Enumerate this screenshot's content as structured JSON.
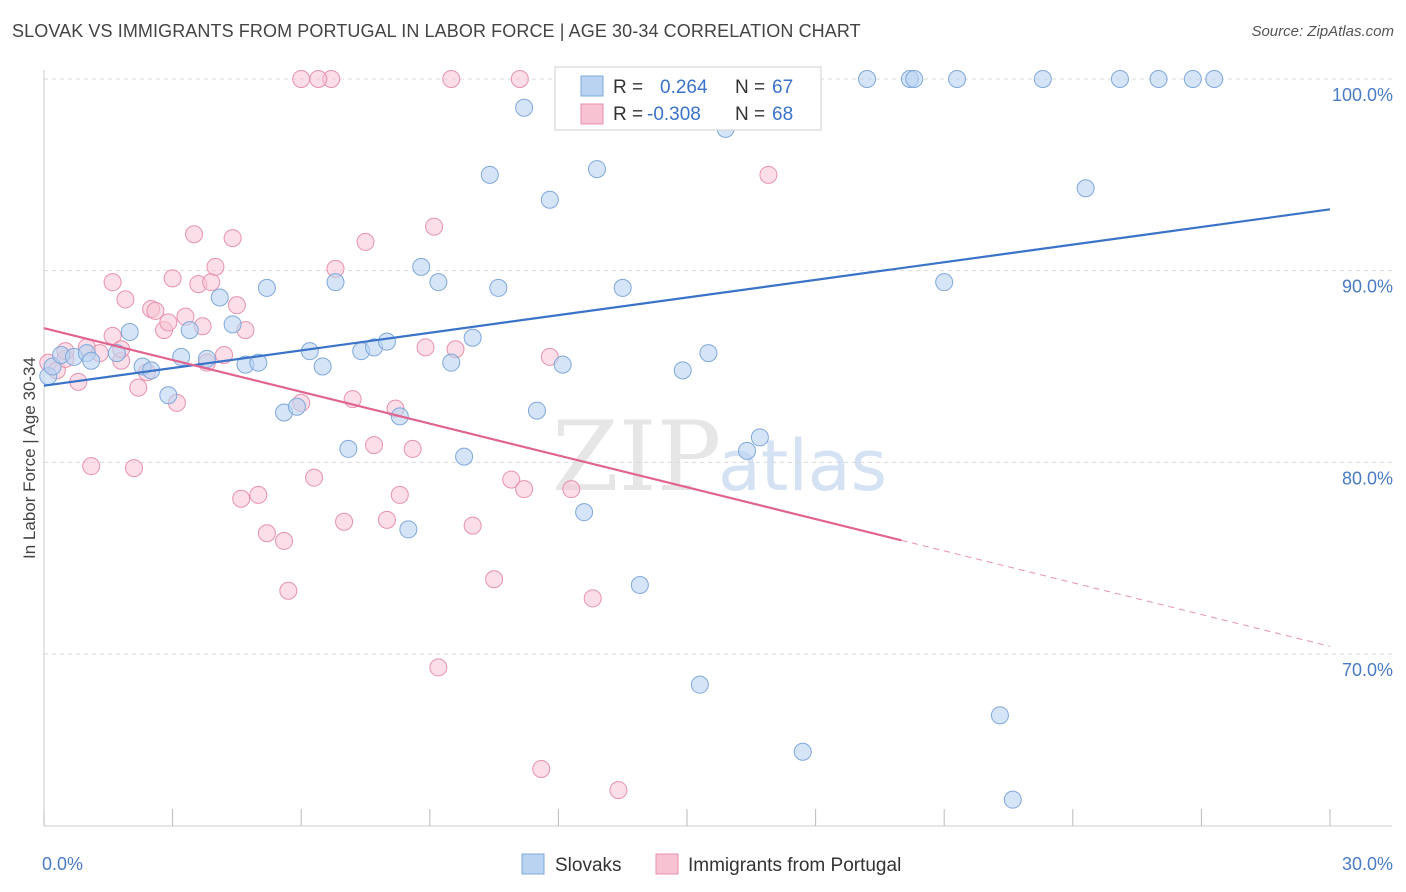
{
  "header": {
    "title": "SLOVAK VS IMMIGRANTS FROM PORTUGAL IN LABOR FORCE | AGE 30-34 CORRELATION CHART",
    "source": "Source: ZipAtlas.com"
  },
  "watermark": {
    "zip": "ZIP",
    "atlas": "atlas"
  },
  "colors": {
    "blue": "#3a73c8",
    "blue_fill": "#b9d3f1",
    "pink": "#e0648f",
    "pink_fill": "#f7c3d3",
    "grid": "#d9d9d9",
    "tick_text": "#4a7cc4"
  },
  "chart_data": {
    "type": "scatter",
    "title": "SLOVAK VS IMMIGRANTS FROM PORTUGAL IN LABOR FORCE | AGE 30-34 CORRELATION CHART",
    "xlabel": "",
    "ylabel": "In Labor Force | Age 30-34",
    "xlim": [
      0,
      30
    ],
    "ylim": [
      62,
      101
    ],
    "x_tick_labels": [
      "0.0%",
      "30.0%"
    ],
    "y_ticks": [
      70,
      80,
      90,
      100
    ],
    "y_tick_labels": [
      "70.0%",
      "80.0%",
      "90.0%",
      "100.0%"
    ],
    "grid": true,
    "legend_position": "top-center",
    "legend": [
      {
        "series": "Slovaks",
        "r_label": "R =",
        "r_value": "0.264",
        "n_label": "N =",
        "n_value": "67"
      },
      {
        "series": "Immigrants from Portugal",
        "r_label": "R =",
        "r_value": "-0.308",
        "n_label": "N =",
        "n_value": "68"
      }
    ],
    "series": [
      {
        "name": "Slovaks",
        "color": "#3a73c8",
        "trend": {
          "x0": 0,
          "y0": 84.0,
          "x1": 30,
          "y1": 93.2,
          "solid_until": 30
        },
        "points": [
          [
            0.1,
            84.5
          ],
          [
            0.2,
            85.0
          ],
          [
            0.4,
            85.6
          ],
          [
            0.7,
            85.5
          ],
          [
            1.0,
            85.7
          ],
          [
            1.1,
            85.3
          ],
          [
            1.7,
            85.7
          ],
          [
            2.0,
            86.8
          ],
          [
            2.3,
            85.0
          ],
          [
            2.5,
            84.8
          ],
          [
            2.9,
            83.5
          ],
          [
            3.2,
            85.5
          ],
          [
            3.4,
            86.9
          ],
          [
            3.8,
            85.4
          ],
          [
            4.1,
            88.6
          ],
          [
            4.4,
            87.2
          ],
          [
            4.7,
            85.1
          ],
          [
            5.0,
            85.2
          ],
          [
            5.2,
            89.1
          ],
          [
            5.6,
            82.6
          ],
          [
            5.9,
            82.9
          ],
          [
            6.2,
            85.8
          ],
          [
            6.5,
            85.0
          ],
          [
            6.8,
            89.4
          ],
          [
            7.1,
            80.7
          ],
          [
            7.4,
            85.8
          ],
          [
            7.7,
            86.0
          ],
          [
            8.0,
            86.3
          ],
          [
            8.3,
            82.4
          ],
          [
            8.5,
            76.5
          ],
          [
            8.8,
            90.2
          ],
          [
            9.2,
            89.4
          ],
          [
            9.5,
            85.2
          ],
          [
            9.8,
            80.3
          ],
          [
            10.0,
            86.5
          ],
          [
            10.4,
            95.0
          ],
          [
            10.6,
            89.1
          ],
          [
            11.2,
            98.5
          ],
          [
            11.5,
            82.7
          ],
          [
            11.8,
            93.7
          ],
          [
            12.1,
            85.1
          ],
          [
            12.6,
            77.4
          ],
          [
            12.9,
            95.3
          ],
          [
            13.5,
            89.1
          ],
          [
            13.9,
            73.6
          ],
          [
            14.9,
            84.8
          ],
          [
            15.3,
            68.4
          ],
          [
            15.5,
            85.7
          ],
          [
            15.9,
            97.4
          ],
          [
            16.4,
            80.6
          ],
          [
            16.7,
            81.3
          ],
          [
            17.7,
            64.9
          ],
          [
            19.2,
            100
          ],
          [
            20.2,
            100
          ],
          [
            20.3,
            100
          ],
          [
            21.3,
            100
          ],
          [
            21.0,
            89.4
          ],
          [
            22.3,
            66.8
          ],
          [
            22.6,
            62.4
          ],
          [
            23.3,
            100
          ],
          [
            24.3,
            94.3
          ],
          [
            25.1,
            100
          ],
          [
            26.0,
            100
          ],
          [
            26.8,
            100
          ],
          [
            27.3,
            100
          ],
          [
            12.3,
            100
          ],
          [
            16.2,
            100
          ]
        ]
      },
      {
        "name": "Immigrants from Portugal",
        "color": "#e0648f",
        "trend": {
          "x0": 0,
          "y0": 87.0,
          "x1": 30,
          "y1": 70.4,
          "solid_until": 20
        },
        "points": [
          [
            0.1,
            85.2
          ],
          [
            0.3,
            84.8
          ],
          [
            0.5,
            85.4
          ],
          [
            0.8,
            84.2
          ],
          [
            1.0,
            86.0
          ],
          [
            1.1,
            79.8
          ],
          [
            1.3,
            85.7
          ],
          [
            1.6,
            86.6
          ],
          [
            1.8,
            85.3
          ],
          [
            1.9,
            88.5
          ],
          [
            1.6,
            89.4
          ],
          [
            2.2,
            83.9
          ],
          [
            2.4,
            84.7
          ],
          [
            2.5,
            88.0
          ],
          [
            2.6,
            87.9
          ],
          [
            2.8,
            86.9
          ],
          [
            2.9,
            87.3
          ],
          [
            3.0,
            89.6
          ],
          [
            3.1,
            83.1
          ],
          [
            3.3,
            87.6
          ],
          [
            3.5,
            91.9
          ],
          [
            3.6,
            89.3
          ],
          [
            3.7,
            87.1
          ],
          [
            3.9,
            89.4
          ],
          [
            4.0,
            90.2
          ],
          [
            4.2,
            85.6
          ],
          [
            4.4,
            91.7
          ],
          [
            4.5,
            88.2
          ],
          [
            4.6,
            78.1
          ],
          [
            4.7,
            86.9
          ],
          [
            2.1,
            79.7
          ],
          [
            5.0,
            78.3
          ],
          [
            5.2,
            76.3
          ],
          [
            5.6,
            75.9
          ],
          [
            5.7,
            73.3
          ],
          [
            6.0,
            83.1
          ],
          [
            6.3,
            79.2
          ],
          [
            6.7,
            100
          ],
          [
            6.8,
            90.1
          ],
          [
            7.0,
            76.9
          ],
          [
            7.2,
            83.3
          ],
          [
            7.5,
            91.5
          ],
          [
            7.7,
            80.9
          ],
          [
            8.0,
            77.0
          ],
          [
            8.2,
            82.8
          ],
          [
            8.3,
            78.3
          ],
          [
            8.6,
            80.7
          ],
          [
            8.9,
            86.0
          ],
          [
            9.1,
            92.3
          ],
          [
            9.2,
            69.3
          ],
          [
            9.6,
            85.9
          ],
          [
            10.0,
            76.7
          ],
          [
            10.5,
            73.9
          ],
          [
            10.9,
            79.1
          ],
          [
            11.2,
            78.6
          ],
          [
            11.6,
            64.0
          ],
          [
            11.8,
            85.5
          ],
          [
            12.3,
            78.6
          ],
          [
            12.8,
            72.9
          ],
          [
            13.4,
            62.9
          ],
          [
            16.9,
            95.0
          ],
          [
            6.0,
            100
          ],
          [
            6.4,
            100
          ],
          [
            11.1,
            100
          ],
          [
            9.5,
            100
          ],
          [
            0.5,
            85.8
          ],
          [
            1.8,
            85.9
          ],
          [
            3.8,
            85.2
          ]
        ]
      }
    ]
  }
}
